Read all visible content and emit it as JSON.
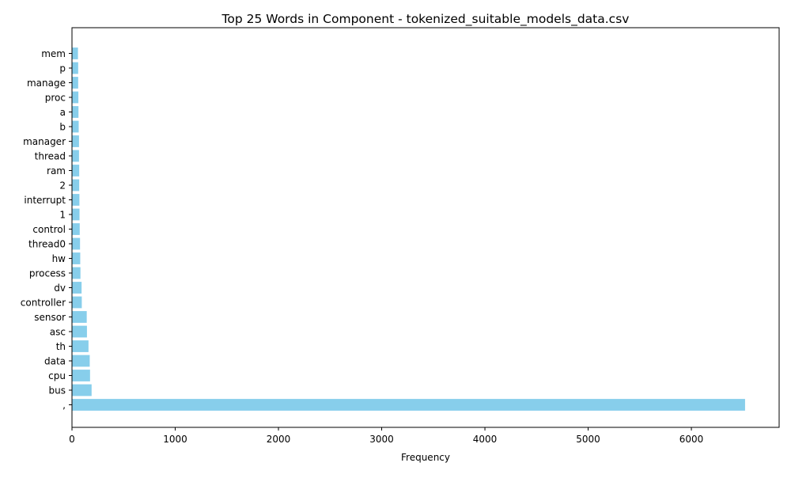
{
  "chart_data": {
    "type": "bar",
    "orientation": "horizontal",
    "title": "Top 25 Words in Component - tokenized_suitable_models_data.csv",
    "xlabel": "Frequency",
    "ylabel": "",
    "xlim": [
      0,
      6850
    ],
    "x_ticks": [
      0,
      1000,
      2000,
      3000,
      4000,
      5000,
      6000
    ],
    "bar_color": "#87ceeb",
    "grid": false,
    "categories": [
      ",",
      "bus",
      "cpu",
      "data",
      "th",
      "asc",
      "sensor",
      "controller",
      "dv",
      "process",
      "hw",
      "thread0",
      "control",
      "1",
      "interrupt",
      "2",
      "ram",
      "thread",
      "manager",
      "b",
      "a",
      "proc",
      "manage",
      "p",
      "mem"
    ],
    "values": [
      6520,
      190,
      175,
      172,
      160,
      145,
      143,
      95,
      93,
      82,
      80,
      78,
      75,
      73,
      72,
      70,
      70,
      68,
      68,
      65,
      63,
      62,
      60,
      60,
      58
    ]
  }
}
